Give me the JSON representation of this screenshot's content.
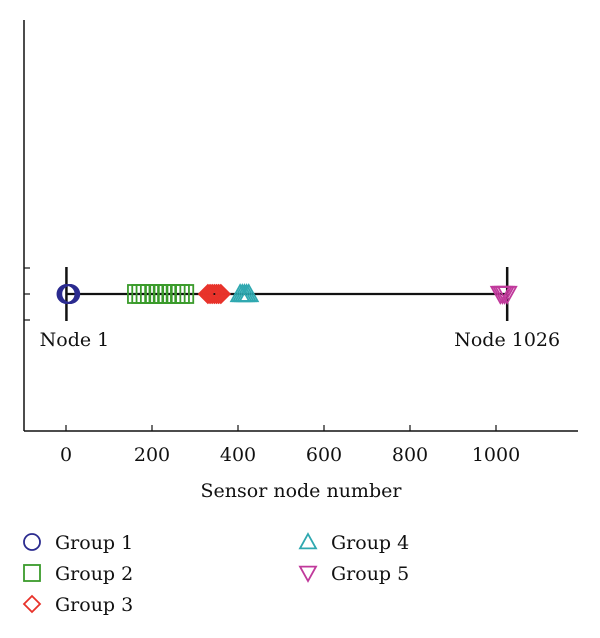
{
  "chart_data": {
    "type": "scatter",
    "title": "",
    "xlabel": "Sensor node number",
    "ylabel": "",
    "xlim": [
      -100,
      1180
    ],
    "xticks": [
      0,
      200,
      400,
      600,
      800,
      1000
    ],
    "grid": false,
    "legend_position": "bottom",
    "line": {
      "from": 1,
      "to": 1026
    },
    "annotations": [
      {
        "text": "Node 1",
        "x": 1
      },
      {
        "text": "Node 1026",
        "x": 1026
      }
    ],
    "series": [
      {
        "name": "Group 1",
        "marker": "circle",
        "color": "#2b2b8f",
        "x": [
          1,
          2,
          3,
          4,
          5,
          6,
          7,
          8,
          9,
          10
        ]
      },
      {
        "name": "Group 2",
        "marker": "square",
        "color": "#3a9b2b",
        "x": [
          165,
          175,
          185,
          195,
          205,
          215,
          225,
          235,
          245,
          255,
          265,
          275
        ]
      },
      {
        "name": "Group 3",
        "marker": "diamond",
        "color": "#e8322a",
        "x": [
          330,
          335,
          340,
          345,
          350,
          355,
          360
        ]
      },
      {
        "name": "Group 4",
        "marker": "triangle-up",
        "color": "#2fa8b0",
        "x": [
          405,
          410,
          415,
          420,
          425
        ]
      },
      {
        "name": "Group 5",
        "marker": "triangle-down",
        "color": "#c0399b",
        "x": [
          1010,
          1015,
          1020,
          1026
        ]
      }
    ]
  }
}
